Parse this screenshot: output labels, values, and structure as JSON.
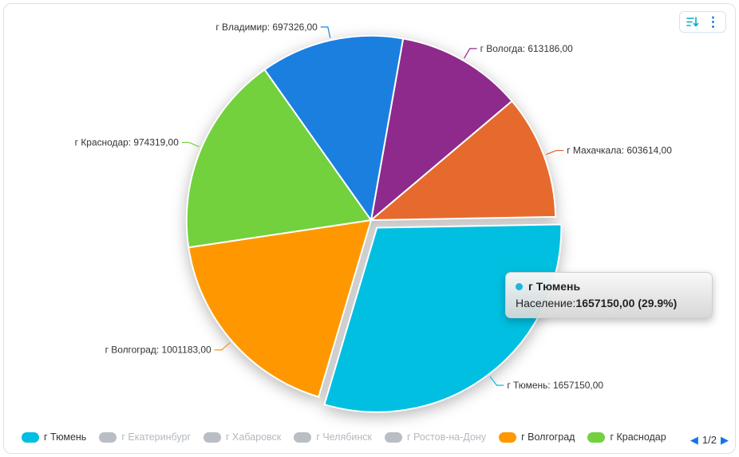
{
  "toolbar": {
    "sort_icon_name": "sort-numeric-icon",
    "menu_icon_name": "kebab-menu-icon"
  },
  "tooltip": {
    "title": "г Тюмень",
    "metric_label": "Население:",
    "metric_value": "1657150,00 (29.9%)",
    "dot_color": "#1fb6dd"
  },
  "legend": {
    "items": [
      {
        "label": "г Тюмень",
        "color": "#00bfe0",
        "active": true
      },
      {
        "label": "г Екатеринбург",
        "color": "#b9bec4",
        "active": false
      },
      {
        "label": "г Хабаровск",
        "color": "#b9bec4",
        "active": false
      },
      {
        "label": "г Челябинск",
        "color": "#b9bec4",
        "active": false
      },
      {
        "label": "г Ростов-на-Дону",
        "color": "#b9bec4",
        "active": false
      },
      {
        "label": "г Волгоград",
        "color": "#ff9800",
        "active": true
      },
      {
        "label": "г Краснодар",
        "color": "#72d13d",
        "active": true
      },
      {
        "label": "г Владимир",
        "color": "#1b7fe0",
        "active": true
      }
    ],
    "page": "1/2",
    "prev_arrow": "◀",
    "next_arrow": "▶"
  },
  "chart_data": {
    "type": "pie",
    "value_label": "Население",
    "start_angle_deg": 10,
    "legend_position": "bottom",
    "slices": [
      {
        "label": "г Вологда",
        "value": 613186,
        "callout": "г Вологда: 613186,00",
        "color": "#8e2a8b"
      },
      {
        "label": "г Махачкала",
        "value": 603614,
        "callout": "г Махачкала: 603614,00",
        "color": "#e66a2d"
      },
      {
        "label": "г Тюмень",
        "value": 1657150,
        "callout": "г Тюмень: 1657150,00",
        "color": "#00bfe0",
        "exploded": true,
        "selected_percent_display": "29.9%"
      },
      {
        "label": "г Волгоград",
        "value": 1001183,
        "callout": "г Волгоград: 1001183,00",
        "color": "#ff9800"
      },
      {
        "label": "г Краснодар",
        "value": 974319,
        "callout": "г Краснодар: 974319,00",
        "color": "#72d13d"
      },
      {
        "label": "г Владимир",
        "value": 697326,
        "callout": "г Владимир: 697326,00",
        "color": "#1b7fe0"
      }
    ]
  }
}
